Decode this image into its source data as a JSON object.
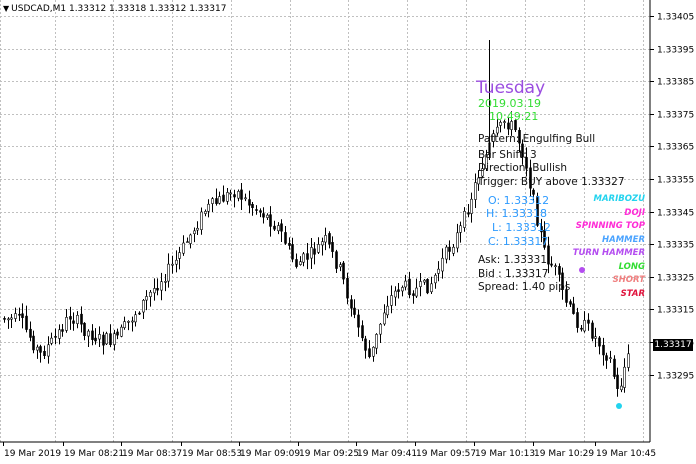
{
  "header": {
    "symbol_line": "USDCAD,M1  1.33312 1.33318 1.33312 1.33317"
  },
  "chart_data": {
    "type": "candlestick",
    "y_ticks": [
      "1.33405",
      "1.33395",
      "1.33385",
      "1.33375",
      "1.33365",
      "1.33355",
      "1.33345",
      "1.33335",
      "1.33325",
      "1.33315",
      "1.33305",
      "1.33295"
    ],
    "x_ticks": [
      "19 Mar 2019",
      "19 Mar 08:21",
      "19 Mar 08:37",
      "19 Mar 08:53",
      "19 Mar 09:09",
      "19 Mar 09:25",
      "19 Mar 09:41",
      "19 Mar 09:57",
      "19 Mar 10:13",
      "19 Mar 10:29",
      "19 Mar 10:45"
    ],
    "ylim": [
      1.33291,
      1.33409
    ],
    "last_price": "1.33317",
    "grid": true,
    "colors": {
      "grid": "#c0c0c0",
      "bull": "#ffffff",
      "bear": "#000000",
      "line": "#000000"
    }
  },
  "overlay": {
    "day": "Tuesday",
    "date": "2019.03.19",
    "time": "10:49:21",
    "pattern": "Pattern: Engulfing Bull",
    "bar_shift": "Bar Shift: 3",
    "direction": "Direction: Bullish",
    "trigger": "Trigger: BUY above 1.33327",
    "o": "O: 1.33312",
    "h": "H: 1.33318",
    "l": "L: 1.33312",
    "c": "C: 1.33317",
    "ask": "Ask: 1.33331",
    "bid": "Bid : 1.33317",
    "spread": "Spread: 1.40 pips"
  },
  "tags": [
    {
      "text": "MARIBOZU",
      "color": "#22d3ee"
    },
    {
      "text": "DOJI",
      "color": "#ff2bd6"
    },
    {
      "text": "SPINNING TOP",
      "color": "#ff2bd6"
    },
    {
      "text": "HAMMER",
      "color": "#4aa3ff"
    },
    {
      "text": "TURN HAMMER",
      "color": "#b44df0"
    },
    {
      "text": "LONG",
      "color": "#33dd33"
    },
    {
      "text": "SHORT",
      "color": "#f08080"
    },
    {
      "text": "STAR",
      "color": "#e0123c"
    }
  ]
}
